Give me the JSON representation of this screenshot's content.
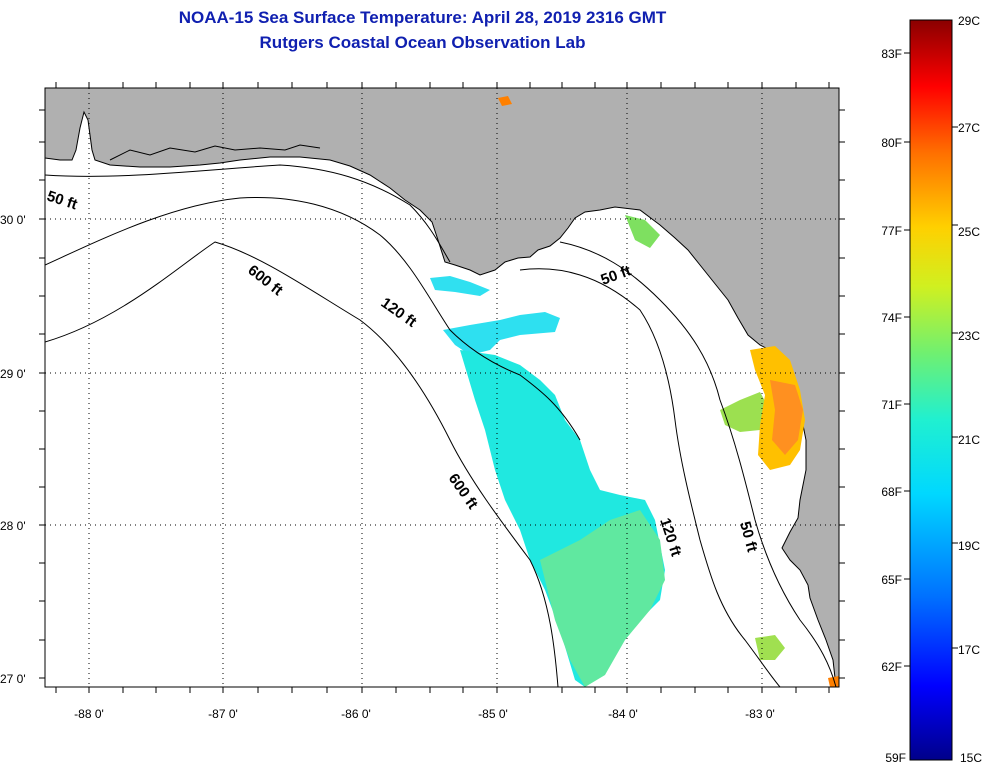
{
  "title": {
    "line1": "NOAA-15 Sea Surface Temperature:  April 28, 2019 2316 GMT",
    "line2": "Rutgers Coastal Ocean Observation Lab"
  },
  "map": {
    "land_color": "#b0b0b0",
    "sea_color": "#ffffff",
    "lat_labels": [
      "30 0'",
      "29 0'",
      "28 0'",
      "27 0'"
    ],
    "lon_labels": [
      "-88 0'",
      "-87 0'",
      "-86 0'",
      "-85 0'",
      "-84 0'",
      "-83 0'"
    ],
    "contour_labels": [
      "50 ft",
      "600 ft",
      "120 ft",
      "50 ft",
      "600 ft",
      "120 ft",
      "50 ft"
    ]
  },
  "colorbar": {
    "celsius_labels": [
      "29C",
      "27C",
      "25C",
      "23C",
      "21C",
      "19C",
      "17C",
      "15C"
    ],
    "fahrenheit_labels": [
      "83F",
      "80F",
      "77F",
      "74F",
      "71F",
      "68F",
      "65F",
      "62F",
      "59F"
    ],
    "stops": [
      "#00008a",
      "#0000ff",
      "#0070ff",
      "#00d8ff",
      "#20f0d0",
      "#70f070",
      "#d0f020",
      "#ffd000",
      "#ff7000",
      "#ff0000",
      "#8a0000"
    ]
  }
}
